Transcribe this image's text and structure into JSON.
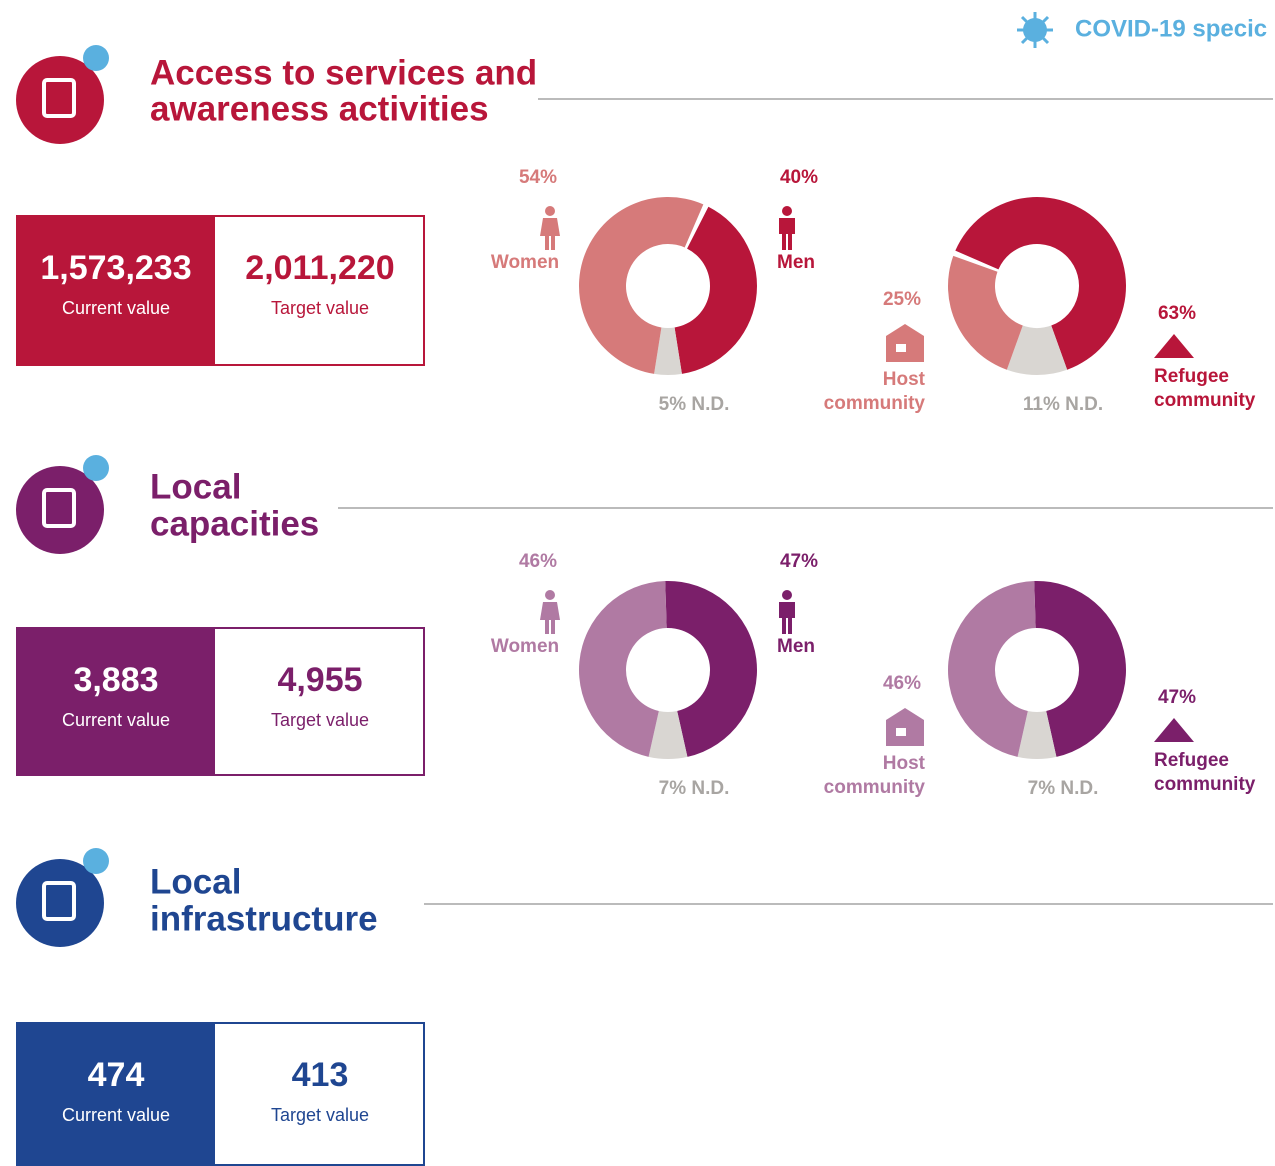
{
  "legend": {
    "label": "COVID-19 specic"
  },
  "sections": [
    {
      "title": [
        "Access to services and",
        "awareness activities"
      ],
      "color": "#b8163a",
      "light": "#d67a7a",
      "current": {
        "value": "1,573,233",
        "label": "Current value"
      },
      "target": {
        "value": "2,011,220",
        "label": "Target value"
      },
      "gender": {
        "left": {
          "label": [
            "Women"
          ],
          "value": 54,
          "value_label": "54%"
        },
        "right": {
          "label": [
            "Men"
          ],
          "value": 40,
          "value_label": "40%"
        },
        "nd": {
          "value": 5,
          "value_label": "5% N.D."
        }
      },
      "community": {
        "left": {
          "label": [
            "Host",
            "community"
          ],
          "value": 25,
          "value_label": "25%"
        },
        "right": {
          "label": [
            "Refugee",
            "community"
          ],
          "value": 63,
          "value_label": "63%"
        },
        "nd": {
          "value": 11,
          "value_label": "11% N.D."
        }
      }
    },
    {
      "title": [
        "Local",
        "capacities"
      ],
      "color": "#7b1f6a",
      "light": "#b07aa3",
      "current": {
        "value": "3,883",
        "label": "Current value"
      },
      "target": {
        "value": "4,955",
        "label": "Target value"
      },
      "gender": {
        "left": {
          "label": [
            "Women"
          ],
          "value": 46,
          "value_label": "46%"
        },
        "right": {
          "label": [
            "Men"
          ],
          "value": 47,
          "value_label": "47%"
        },
        "nd": {
          "value": 7,
          "value_label": "7% N.D."
        }
      },
      "community": {
        "left": {
          "label": [
            "Host",
            "community"
          ],
          "value": 46,
          "value_label": "46%"
        },
        "right": {
          "label": [
            "Refugee",
            "community"
          ],
          "value": 47,
          "value_label": "47%"
        },
        "nd": {
          "value": 7,
          "value_label": "7% N.D."
        }
      }
    },
    {
      "title": [
        "Local",
        "infrastructure"
      ],
      "color": "#1f4691",
      "current": {
        "value": "474",
        "label": "Current value"
      },
      "target": {
        "value": "413",
        "label": "Target value"
      }
    }
  ]
}
